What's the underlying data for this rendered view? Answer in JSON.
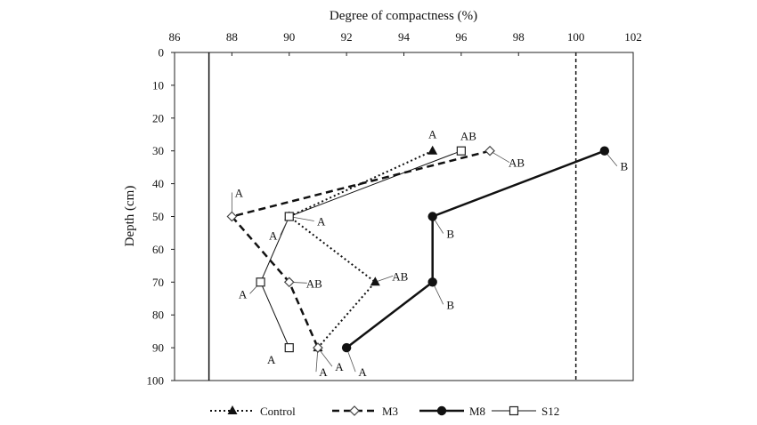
{
  "chart_data": {
    "type": "line",
    "xlabel": "Degree of compactness (%)",
    "ylabel": "Depth (cm)",
    "xlim": [
      86,
      102
    ],
    "ylim": [
      0,
      100
    ],
    "y_inverted": true,
    "x_axis_position": "top",
    "xticks": [
      "86",
      "88",
      "90",
      "92",
      "94",
      "96",
      "98",
      "100",
      "102"
    ],
    "yticks": [
      "0",
      "10",
      "20",
      "30",
      "40",
      "50",
      "60",
      "70",
      "80",
      "90",
      "100"
    ],
    "grid": false,
    "legend_position": "bottom",
    "reference_lines": [
      {
        "x": 87.2,
        "style": "solid"
      },
      {
        "x": 100,
        "style": "dashed"
      }
    ],
    "series": [
      {
        "name": "Control",
        "marker": "triangle",
        "line_style": "dotted",
        "points": [
          {
            "x": 95,
            "y": 30,
            "label": "A"
          },
          {
            "x": 90,
            "y": 50,
            "label": "A"
          },
          {
            "x": 93,
            "y": 70,
            "label": "AB"
          },
          {
            "x": 91,
            "y": 90,
            "label": "A"
          }
        ]
      },
      {
        "name": "M3",
        "marker": "diamond",
        "line_style": "dashed",
        "points": [
          {
            "x": 97,
            "y": 30,
            "label": "AB"
          },
          {
            "x": 88,
            "y": 50,
            "label": "A"
          },
          {
            "x": 90,
            "y": 70,
            "label": "AB"
          },
          {
            "x": 91,
            "y": 90,
            "label": "A"
          }
        ]
      },
      {
        "name": "M8",
        "marker": "circle",
        "line_style": "solid-bold",
        "points": [
          {
            "x": 101,
            "y": 30,
            "label": "B"
          },
          {
            "x": 95,
            "y": 50,
            "label": "B"
          },
          {
            "x": 95,
            "y": 70,
            "label": "B"
          },
          {
            "x": 92,
            "y": 90,
            "label": "A"
          }
        ]
      },
      {
        "name": "S12",
        "marker": "square",
        "line_style": "solid-thin",
        "points": [
          {
            "x": 96,
            "y": 30,
            "label": "AB"
          },
          {
            "x": 90,
            "y": 50,
            "label": "A"
          },
          {
            "x": 89,
            "y": 70,
            "label": "A"
          },
          {
            "x": 90,
            "y": 90,
            "label": "A"
          }
        ]
      }
    ]
  }
}
